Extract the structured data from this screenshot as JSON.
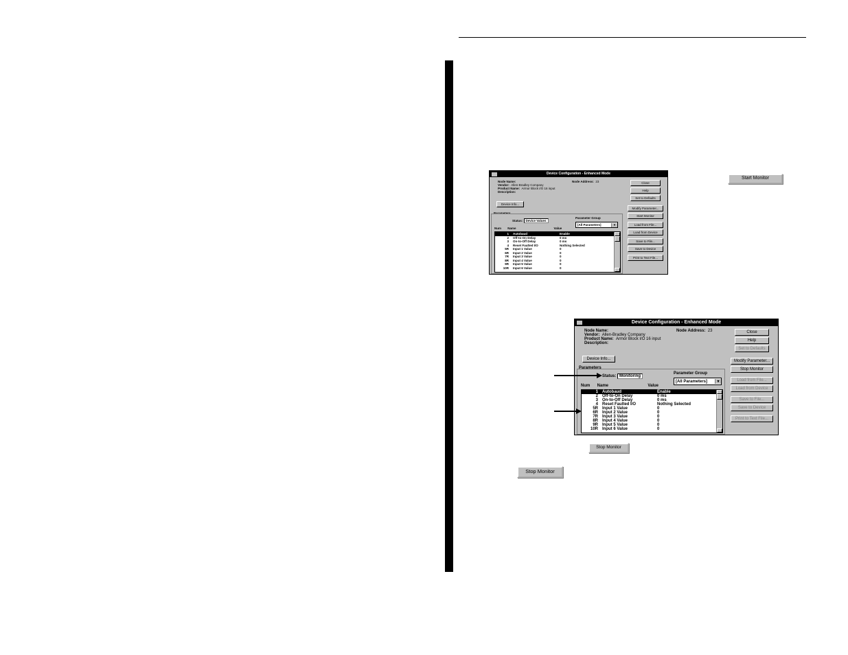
{
  "ruleTop": 54,
  "dialog1": {
    "title": "Device Configuration - Enhanced Mode",
    "nodeNameLbl": "Node Name:",
    "nodeAddrLbl": "Node Address:",
    "nodeAddr": "23",
    "vendorLbl": "Vendor:",
    "vendor": "Allen-Bradley Company",
    "productLbl": "Product Name:",
    "product": "Armor Block I/O   16 input",
    "descLbl": "Description:",
    "deviceInfoBtn": "Device Info...",
    "paramsLbl": "Parameters",
    "statusLbl": "Status:",
    "status": "Device Values",
    "paramGroupLbl": "Parameter Group",
    "paramGroup": "[All Parameters]",
    "hdrNum": "Num",
    "hdrName": "Name",
    "hdrValue": "Value",
    "rows": [
      {
        "n": "1",
        "name": "Autobaud",
        "val": "Enable",
        "sel": true
      },
      {
        "n": "2",
        "name": "Off-to-On Delay",
        "val": "0 ms"
      },
      {
        "n": "3",
        "name": "On-to-Off Delay",
        "val": "0 ms"
      },
      {
        "n": "4",
        "name": "Reset Faulted I/O",
        "val": "Nothing Selected"
      },
      {
        "n": "5R",
        "name": "Input 1 Value",
        "val": "0"
      },
      {
        "n": "6R",
        "name": "Input 2 Value",
        "val": "0"
      },
      {
        "n": "7R",
        "name": "Input 3 Value",
        "val": "0"
      },
      {
        "n": "8R",
        "name": "Input 4 Value",
        "val": "0"
      },
      {
        "n": "9R",
        "name": "Input 5 Value",
        "val": "0"
      },
      {
        "n": "10R",
        "name": "Input 6 Value",
        "val": "0"
      }
    ],
    "buttons": {
      "close": "Close",
      "help": "Help",
      "defaults": "Set to Defaults",
      "modify": "Modify Parameter...",
      "startMon": "Start Monitor",
      "loadFile": "Load from File...",
      "loadDev": "Load from Device",
      "saveFile": "Save to File...",
      "saveDev": "Save to Device",
      "print": "Print to Text File..."
    }
  },
  "standalone1": "Start Monitor",
  "dialog2": {
    "title": "Device Configuration - Enhanced Mode",
    "nodeNameLbl": "Node Name:",
    "nodeAddrLbl": "Node Address:",
    "nodeAddr": "23",
    "vendorLbl": "Vendor:",
    "vendor": "Allen-Bradley Company",
    "productLbl": "Product Name:",
    "product": "Armor Block I/O   16 input",
    "descLbl": "Description:",
    "deviceInfoBtn": "Device Info...",
    "paramsLbl": "Parameters",
    "statusLbl": "Status:",
    "status": "Monitoring",
    "paramGroupLbl": "Parameter Group",
    "paramGroup": "[All Parameters]",
    "hdrNum": "Num",
    "hdrName": "Name",
    "hdrValue": "Value",
    "rows": [
      {
        "n": "1",
        "name": "Autobaud",
        "val": "Enable",
        "sel": true
      },
      {
        "n": "2",
        "name": "Off-to-On Delay",
        "val": "0 ms"
      },
      {
        "n": "3",
        "name": "On-to-Off Delay",
        "val": "0 ms"
      },
      {
        "n": "4",
        "name": "Reset Faulted I/O",
        "val": "Nothing Selected"
      },
      {
        "n": "5R",
        "name": "Input 1 Value",
        "val": "0"
      },
      {
        "n": "6R",
        "name": "Input 2 Value",
        "val": "0"
      },
      {
        "n": "7R",
        "name": "Input 3 Value",
        "val": "0"
      },
      {
        "n": "8R",
        "name": "Input 4 Value",
        "val": "0"
      },
      {
        "n": "9R",
        "name": "Input 5 Value",
        "val": "0"
      },
      {
        "n": "10R",
        "name": "Input 6 Value",
        "val": "0"
      }
    ],
    "buttons": {
      "close": "Close",
      "help": "Help",
      "defaults": "Set to Defaults",
      "modify": "Modify Parameter...",
      "stopMon": "Stop Monitor",
      "loadFile": "Load from File...",
      "loadDev": "Load from Device",
      "saveFile": "Save to File...",
      "saveDev": "Save to Device",
      "print": "Print to Text File..."
    }
  },
  "standalone2": "Stop Monitor",
  "standalone3": "Stop Monitor"
}
